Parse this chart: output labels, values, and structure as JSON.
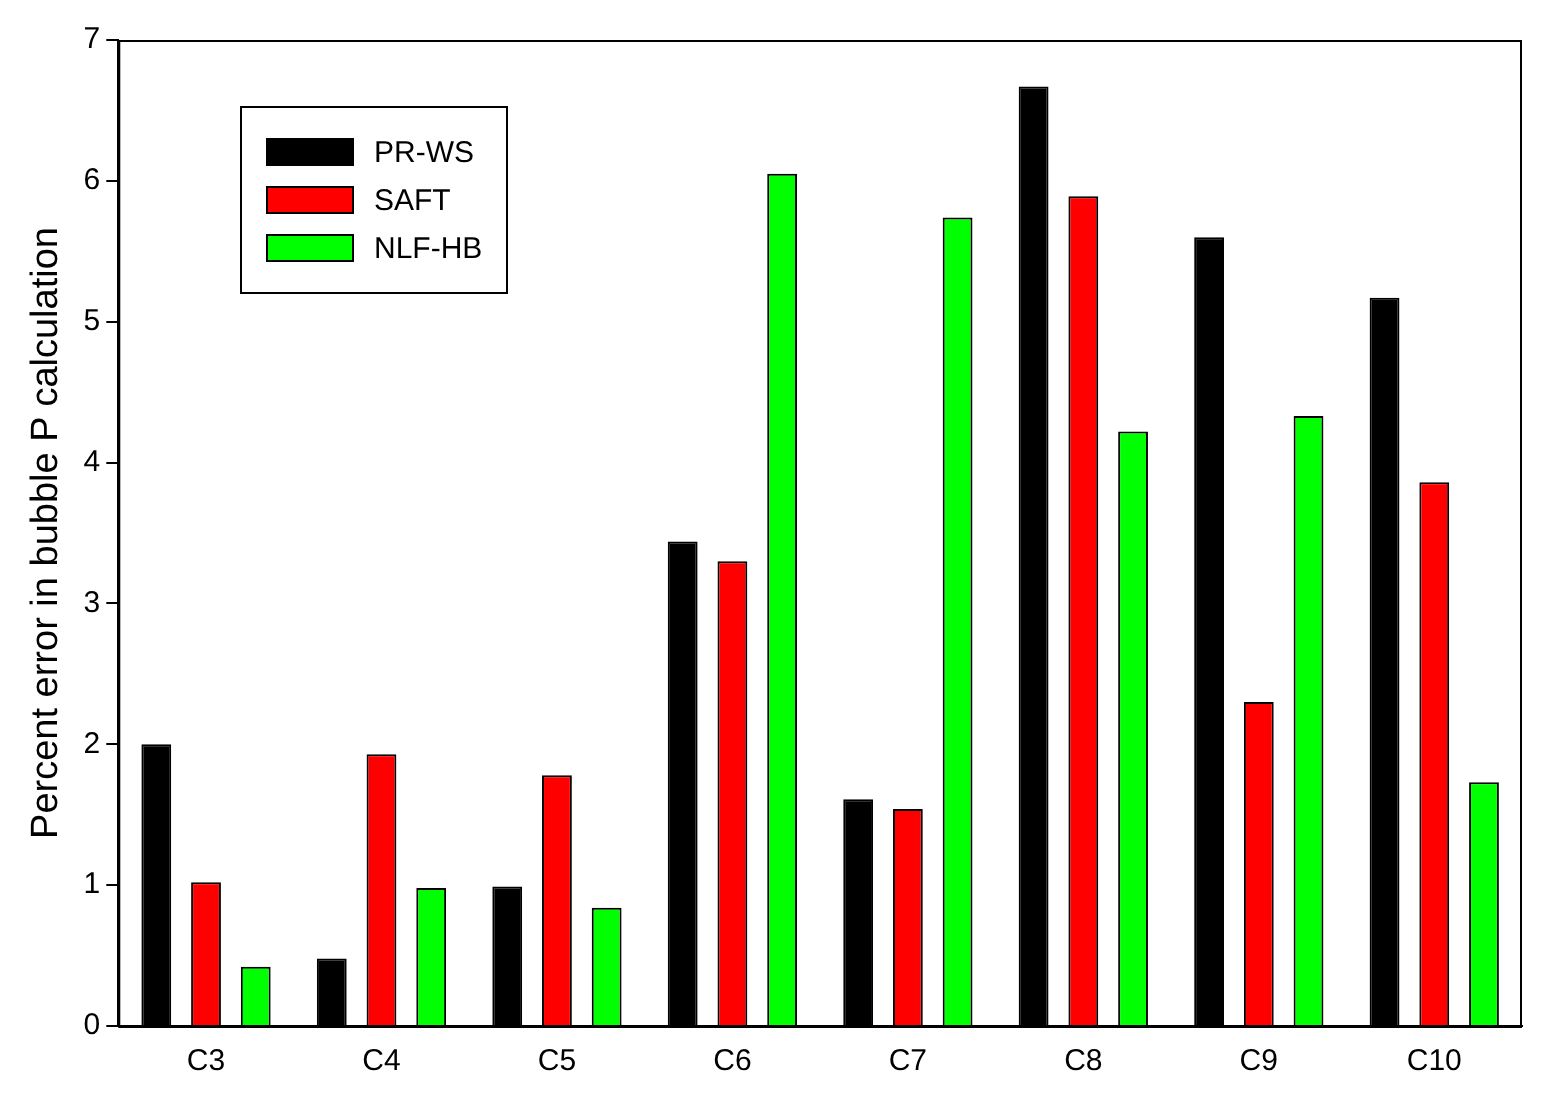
{
  "chart_data": {
    "type": "bar",
    "ylabel": "Percent error in bubble P calculation",
    "categories": [
      "C3",
      "C4",
      "C5",
      "C6",
      "C7",
      "C8",
      "C9",
      "C10"
    ],
    "series": [
      {
        "name": "PR-WS",
        "color": "#000000",
        "values": [
          2.0,
          0.48,
          0.99,
          3.44,
          1.61,
          6.67,
          5.6,
          5.17
        ]
      },
      {
        "name": "SAFT",
        "color": "#ff0000",
        "values": [
          1.02,
          1.93,
          1.78,
          3.3,
          1.54,
          5.89,
          2.3,
          3.86
        ]
      },
      {
        "name": "NLF-HB",
        "color": "#00ff00",
        "values": [
          0.42,
          0.98,
          0.84,
          6.05,
          5.74,
          4.22,
          4.33,
          1.73
        ]
      }
    ],
    "ylim": [
      0,
      7
    ],
    "yticks": [
      0,
      1,
      2,
      3,
      4,
      5,
      6,
      7
    ],
    "grid": false,
    "legend": "top left"
  }
}
